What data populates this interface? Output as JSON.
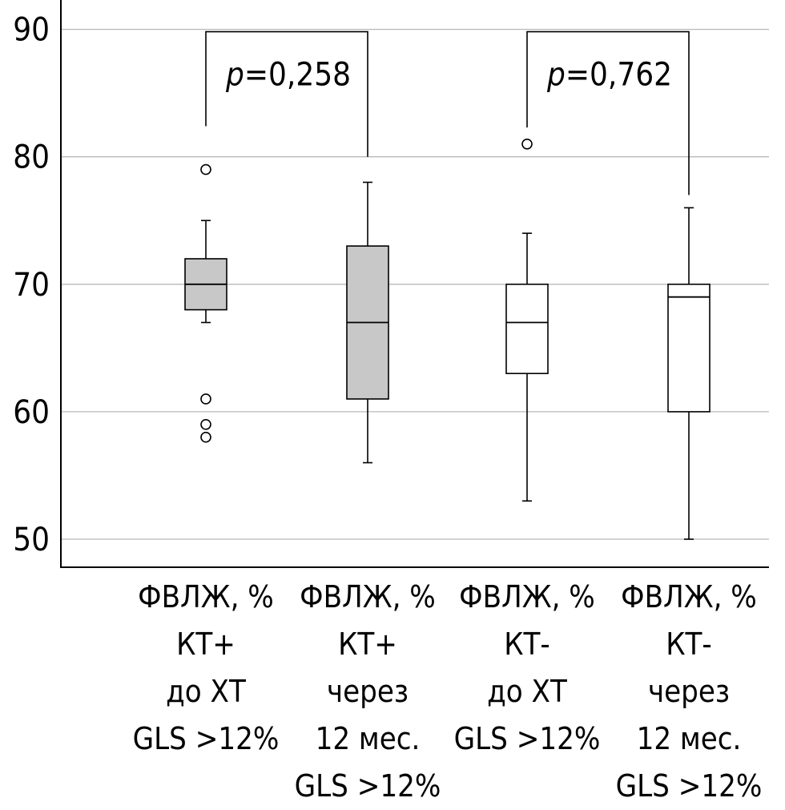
{
  "chart_data": {
    "type": "boxplot",
    "title": "",
    "xlabel": "",
    "ylabel": "",
    "ylim": [
      47.8,
      92.3
    ],
    "yticks": [
      50,
      60,
      70,
      80,
      90
    ],
    "grid": true,
    "categories": [
      [
        "ФВЛЖ, %",
        "КТ+",
        "до ХТ",
        "GLS >12%"
      ],
      [
        "ФВЛЖ, %",
        "КТ+",
        "через",
        "12 мес.",
        "GLS >12%"
      ],
      [
        "ФВЛЖ, %",
        "КТ-",
        "до ХТ",
        "GLS >12%"
      ],
      [
        "ФВЛЖ, %",
        "КТ-",
        "через",
        "12 мес.",
        "GLS >12%"
      ]
    ],
    "boxes": [
      {
        "whisker_low": 67,
        "q1": 68,
        "median": 70,
        "q3": 72,
        "whisker_high": 75,
        "outliers": [
          79,
          61,
          59,
          58
        ],
        "fill": "#c8c8c8"
      },
      {
        "whisker_low": 56,
        "q1": 61,
        "median": 67,
        "q3": 73,
        "whisker_high": 78,
        "outliers": [],
        "fill": "#c8c8c8"
      },
      {
        "whisker_low": 53,
        "q1": 63,
        "median": 67,
        "q3": 70,
        "whisker_high": 74,
        "outliers": [
          81
        ],
        "fill": "#ffffff"
      },
      {
        "whisker_low": 50,
        "q1": 60,
        "median": 69,
        "q3": 70,
        "whisker_high": 76,
        "outliers": [],
        "fill": "#ffffff"
      }
    ],
    "annotations": [
      {
        "from": 0,
        "to": 1,
        "p_prefix": "p",
        "p_value": "=0,258",
        "bracket_top": 90,
        "left_end": 82.4,
        "right_end": 80
      },
      {
        "from": 2,
        "to": 3,
        "p_prefix": "p",
        "p_value": "=0,762",
        "bracket_top": 90,
        "left_end": 82.3,
        "right_end": 77
      }
    ]
  }
}
